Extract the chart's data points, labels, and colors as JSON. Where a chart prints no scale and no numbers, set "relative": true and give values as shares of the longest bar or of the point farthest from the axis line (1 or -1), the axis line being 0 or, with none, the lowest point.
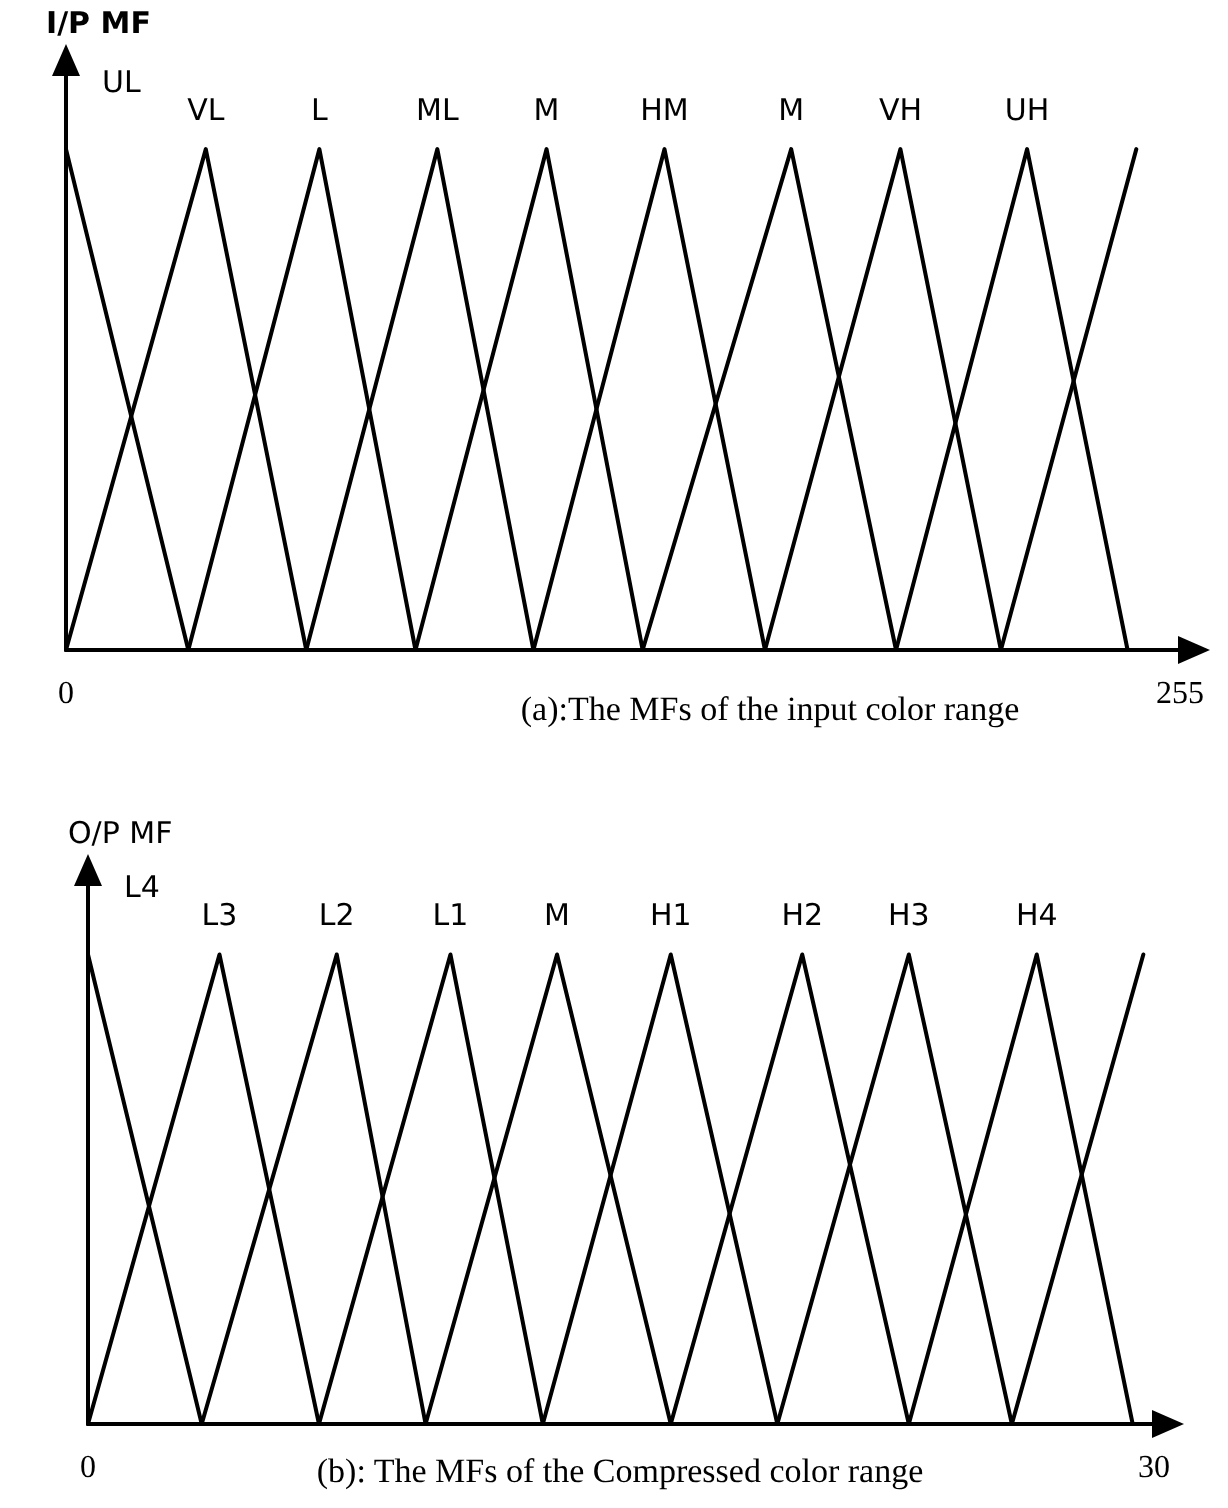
{
  "chart_data": [
    {
      "type": "line",
      "ylabel": "I/P MF",
      "annotations": [
        "(a):The MFs of the input color range"
      ],
      "xlim": [
        0,
        255
      ],
      "xticks": [
        0,
        255
      ],
      "relative": true,
      "marker": "none",
      "series": [
        {
          "name": "UL",
          "color": "#000000",
          "x": [
            0,
            28
          ],
          "values": [
            1,
            0
          ]
        },
        {
          "name": "VL",
          "color": "#000000",
          "x": [
            0,
            32,
            55
          ],
          "values": [
            0,
            1,
            0
          ]
        },
        {
          "name": "L",
          "color": "#000000",
          "x": [
            28,
            58,
            80
          ],
          "values": [
            0,
            1,
            0
          ]
        },
        {
          "name": "ML",
          "color": "#000000",
          "x": [
            55,
            85,
            107
          ],
          "values": [
            0,
            1,
            0
          ]
        },
        {
          "name": "M",
          "color": "#000000",
          "x": [
            80,
            110,
            132
          ],
          "values": [
            0,
            1,
            0
          ]
        },
        {
          "name": "HM",
          "color": "#000000",
          "x": [
            107,
            137,
            160
          ],
          "values": [
            0,
            1,
            0
          ]
        },
        {
          "name": "M",
          "color": "#000000",
          "x": [
            132,
            166,
            190
          ],
          "values": [
            0,
            1,
            0
          ]
        },
        {
          "name": "VH",
          "color": "#000000",
          "x": [
            160,
            191,
            214
          ],
          "values": [
            0,
            1,
            0
          ]
        },
        {
          "name": "UH",
          "color": "#000000",
          "x": [
            190,
            220,
            243
          ],
          "values": [
            0,
            1,
            0
          ]
        },
        {
          "color": "#000000",
          "x": [
            214,
            245
          ],
          "values": [
            0,
            1
          ]
        }
      ]
    },
    {
      "type": "line",
      "ylabel": "O/P MF",
      "annotations": [
        "(b): The MFs of the Compressed color range"
      ],
      "xlim": [
        0,
        30
      ],
      "xticks": [
        0,
        30
      ],
      "relative": true,
      "marker": "none",
      "series": [
        {
          "name": "L4",
          "color": "#000000",
          "x": [
            0,
            3.2
          ],
          "values": [
            1,
            0
          ]
        },
        {
          "name": "L3",
          "color": "#000000",
          "x": [
            0,
            3.7,
            6.5
          ],
          "values": [
            0,
            1,
            0
          ]
        },
        {
          "name": "L2",
          "color": "#000000",
          "x": [
            3.2,
            7.0,
            9.5
          ],
          "values": [
            0,
            1,
            0
          ]
        },
        {
          "name": "L1",
          "color": "#000000",
          "x": [
            6.5,
            10.2,
            12.8
          ],
          "values": [
            0,
            1,
            0
          ]
        },
        {
          "name": "M",
          "color": "#000000",
          "x": [
            9.5,
            13.2,
            16.4
          ],
          "values": [
            0,
            1,
            0
          ]
        },
        {
          "name": "H1",
          "color": "#000000",
          "x": [
            12.8,
            16.4,
            19.4
          ],
          "values": [
            0,
            1,
            0
          ]
        },
        {
          "name": "H2",
          "color": "#000000",
          "x": [
            16.4,
            20.1,
            23.1
          ],
          "values": [
            0,
            1,
            0
          ]
        },
        {
          "name": "H3",
          "color": "#000000",
          "x": [
            19.4,
            23.1,
            26.0
          ],
          "values": [
            0,
            1,
            0
          ]
        },
        {
          "name": "H4",
          "color": "#000000",
          "x": [
            23.1,
            26.7,
            29.4
          ],
          "values": [
            0,
            1,
            0
          ]
        },
        {
          "color": "#000000",
          "x": [
            26.0,
            29.7
          ],
          "values": [
            0,
            1
          ]
        }
      ]
    }
  ]
}
